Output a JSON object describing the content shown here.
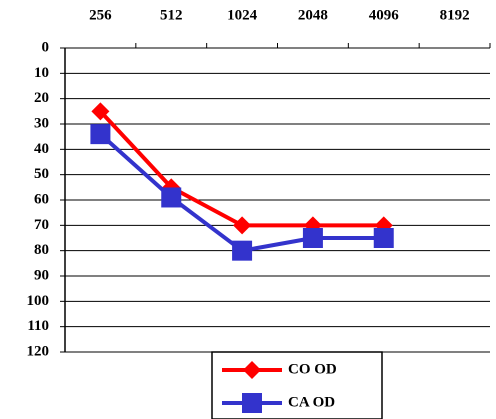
{
  "chart_data": {
    "type": "line",
    "categories": [
      "256",
      "512",
      "1024",
      "2048",
      "4096",
      "8192"
    ],
    "series": [
      {
        "name": "CO OD",
        "color": "#ff0000",
        "marker": "diamond",
        "values": [
          25,
          55,
          70,
          70,
          70,
          null
        ]
      },
      {
        "name": "CA OD",
        "color": "#3333cc",
        "marker": "square",
        "values": [
          34,
          59,
          80,
          75,
          75,
          null
        ]
      }
    ],
    "ylim": [
      0,
      120
    ],
    "yticks": [
      0,
      10,
      20,
      30,
      40,
      50,
      60,
      70,
      80,
      90,
      100,
      110,
      120
    ],
    "y_inverted": true,
    "grid": true,
    "legend": "bottom"
  }
}
